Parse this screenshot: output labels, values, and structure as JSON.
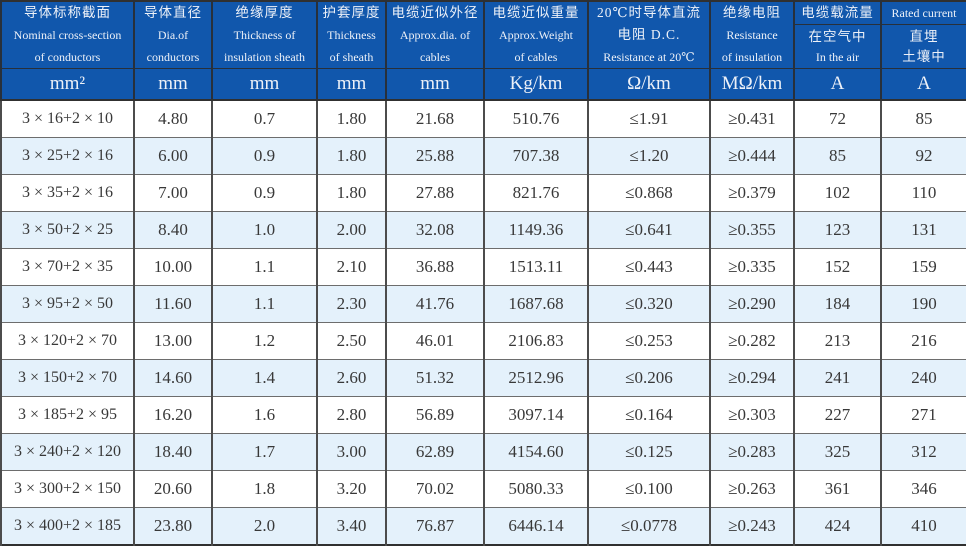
{
  "colors": {
    "header_bg": "#1157ac",
    "header_text": "#edf1f8",
    "row_alt_bg": "#e4f1fb",
    "cell_text": "#383838",
    "grid_line": "#4c4c4c"
  },
  "table": {
    "column_keys": [
      "cross-section",
      "conductor-diameter",
      "insulation-thickness",
      "sheath-thickness",
      "approx-diameter",
      "approx-weight",
      "dc-resistance",
      "insulation-resistance",
      "current-in-air",
      "current-buried"
    ],
    "header": {
      "columns": [
        {
          "zh": "导体标称截面",
          "en1": "Nominal cross-section",
          "en2": "of conductors",
          "unit": "mm²"
        },
        {
          "zh": "导体直径",
          "en1": "Dia.of",
          "en2": "conductors",
          "unit": "mm"
        },
        {
          "zh": "绝缘厚度",
          "en1": "Thickness of",
          "en2": "insulation sheath",
          "unit": "mm"
        },
        {
          "zh": "护套厚度",
          "en1": "Thickness",
          "en2": "of sheath",
          "unit": "mm"
        },
        {
          "zh": "电缆近似外径",
          "en1": "Approx.dia. of",
          "en2": "cables",
          "unit": "mm"
        },
        {
          "zh": "电缆近似重量",
          "en1": "Approx.Weight",
          "en2": "of cables",
          "unit": "Kg/km"
        },
        {
          "zh": "20℃时导体直流",
          "en1": "电阻 D.C.",
          "en2": "Resistance at 20℃",
          "unit": "Ω/km"
        },
        {
          "zh": "绝缘电阻",
          "en1": "Resistance",
          "en2": "of insulation",
          "unit": "MΩ/km"
        },
        {
          "top": "电缆载流量",
          "sub1": "在空气中",
          "sub2": "In the air",
          "unit": "A"
        },
        {
          "top": "Rated current",
          "sub1": "直埋",
          "sub2": "土壤中",
          "unit": "A"
        }
      ]
    },
    "rows": [
      [
        "3 × 16+2 × 10",
        "4.80",
        "0.7",
        "1.80",
        "21.68",
        "510.76",
        "≤1.91",
        "≥0.431",
        "72",
        "85"
      ],
      [
        "3 × 25+2 × 16",
        "6.00",
        "0.9",
        "1.80",
        "25.88",
        "707.38",
        "≤1.20",
        "≥0.444",
        "85",
        "92"
      ],
      [
        "3 × 35+2 × 16",
        "7.00",
        "0.9",
        "1.80",
        "27.88",
        "821.76",
        "≤0.868",
        "≥0.379",
        "102",
        "110"
      ],
      [
        "3 × 50+2 × 25",
        "8.40",
        "1.0",
        "2.00",
        "32.08",
        "1149.36",
        "≤0.641",
        "≥0.355",
        "123",
        "131"
      ],
      [
        "3 × 70+2 × 35",
        "10.00",
        "1.1",
        "2.10",
        "36.88",
        "1513.11",
        "≤0.443",
        "≥0.335",
        "152",
        "159"
      ],
      [
        "3 × 95+2 × 50",
        "11.60",
        "1.1",
        "2.30",
        "41.76",
        "1687.68",
        "≤0.320",
        "≥0.290",
        "184",
        "190"
      ],
      [
        "3 × 120+2 × 70",
        "13.00",
        "1.2",
        "2.50",
        "46.01",
        "2106.83",
        "≤0.253",
        "≥0.282",
        "213",
        "216"
      ],
      [
        "3 × 150+2 × 70",
        "14.60",
        "1.4",
        "2.60",
        "51.32",
        "2512.96",
        "≤0.206",
        "≥0.294",
        "241",
        "240"
      ],
      [
        "3 × 185+2 × 95",
        "16.20",
        "1.6",
        "2.80",
        "56.89",
        "3097.14",
        "≤0.164",
        "≥0.303",
        "227",
        "271"
      ],
      [
        "3 × 240+2 × 120",
        "18.40",
        "1.7",
        "3.00",
        "62.89",
        "4154.60",
        "≤0.125",
        "≥0.283",
        "325",
        "312"
      ],
      [
        "3 × 300+2 × 150",
        "20.60",
        "1.8",
        "3.20",
        "70.02",
        "5080.33",
        "≤0.100",
        "≥0.263",
        "361",
        "346"
      ],
      [
        "3 × 400+2 × 185",
        "23.80",
        "2.0",
        "3.40",
        "76.87",
        "6446.14",
        "≤0.0778",
        "≥0.243",
        "424",
        "410"
      ]
    ]
  }
}
